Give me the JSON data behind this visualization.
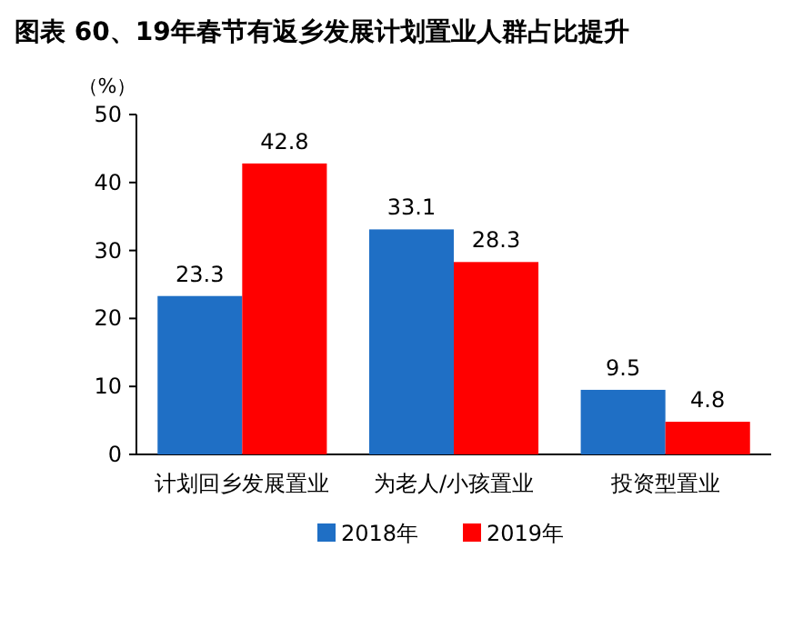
{
  "chart_data": {
    "type": "bar",
    "title": "图表 60、19年春节有返乡发展计划置业人群占比提升",
    "ylabel": "（%）",
    "categories": [
      "计划回乡发展置业",
      "为老人/小孩置业",
      "投资型置业"
    ],
    "series": [
      {
        "name": "2018年",
        "color": "#1f6fc5",
        "values": [
          23.3,
          33.1,
          9.5
        ]
      },
      {
        "name": "2019年",
        "color": "#ff0000",
        "values": [
          42.8,
          28.3,
          4.8
        ]
      }
    ],
    "ylim": [
      0,
      50
    ],
    "yticks": [
      0,
      10,
      20,
      30,
      40,
      50
    ],
    "data_labels": true,
    "legend": "bottom",
    "grid": false
  }
}
